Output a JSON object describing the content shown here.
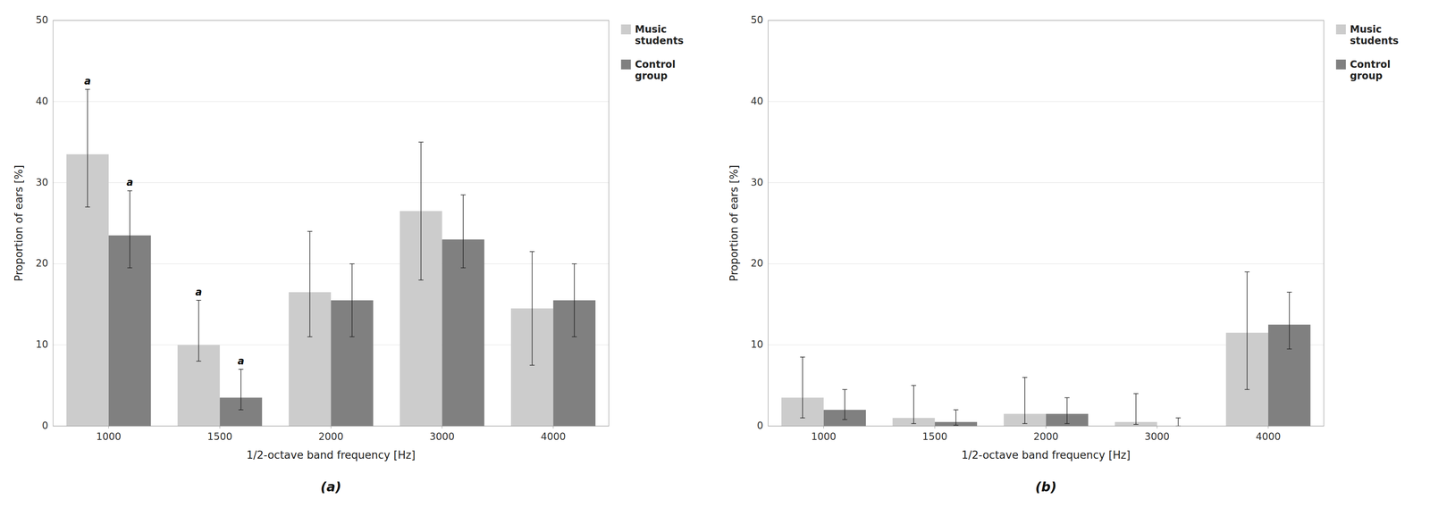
{
  "chart_data": [
    {
      "type": "bar",
      "subtitle": "(a)",
      "xlabel": "1/2-octave band frequency [Hz]",
      "ylabel": "Proportion of ears [%]",
      "categories": [
        "1000",
        "1500",
        "2000",
        "3000",
        "4000"
      ],
      "series": [
        {
          "name": "Music\nstudents",
          "color": "#cccccc",
          "values": [
            33.5,
            10.0,
            16.5,
            26.5,
            14.5
          ],
          "error_low": [
            6.5,
            2.0,
            5.5,
            8.5,
            7.0
          ],
          "error_high": [
            8.0,
            5.5,
            7.5,
            8.5,
            7.0
          ]
        },
        {
          "name": "Control\ngroup",
          "color": "#808080",
          "values": [
            23.5,
            3.5,
            15.5,
            23.0,
            15.5
          ],
          "error_low": [
            4.0,
            1.5,
            4.5,
            3.5,
            4.5
          ],
          "error_high": [
            5.5,
            3.5,
            4.5,
            5.5,
            4.5
          ]
        }
      ],
      "annotations": [
        {
          "category": "1000",
          "series": "Music\nstudents",
          "label": "a"
        },
        {
          "category": "1000",
          "series": "Control\ngroup",
          "label": "a"
        },
        {
          "category": "1500",
          "series": "Music\nstudents",
          "label": "a"
        },
        {
          "category": "1500",
          "series": "Control\ngroup",
          "label": "a"
        }
      ],
      "ylim": [
        0,
        50
      ],
      "yticks": [
        0,
        10,
        20,
        30,
        40,
        50
      ],
      "grid": true,
      "legend": "right"
    },
    {
      "type": "bar",
      "subtitle": "(b)",
      "xlabel": "1/2-octave band frequency [Hz]",
      "ylabel": "Proportion of ears [%]",
      "categories": [
        "1000",
        "1500",
        "2000",
        "3000",
        "4000"
      ],
      "series": [
        {
          "name": "Music\nstudents",
          "color": "#cccccc",
          "values": [
            3.5,
            1.0,
            1.5,
            0.5,
            11.5
          ],
          "error_low": [
            2.5,
            0.7,
            1.2,
            0.3,
            7.0
          ],
          "error_high": [
            5.0,
            4.0,
            4.5,
            3.5,
            7.5
          ]
        },
        {
          "name": "Control\ngroup",
          "color": "#808080",
          "values": [
            2.0,
            0.5,
            1.5,
            0.0,
            12.5
          ],
          "error_low": [
            1.2,
            0.4,
            1.2,
            0.0,
            3.0
          ],
          "error_high": [
            2.5,
            1.5,
            2.0,
            1.0,
            4.0
          ]
        }
      ],
      "ylim": [
        0,
        50
      ],
      "yticks": [
        0,
        10,
        20,
        30,
        40,
        50
      ],
      "grid": true,
      "legend": "right"
    }
  ]
}
